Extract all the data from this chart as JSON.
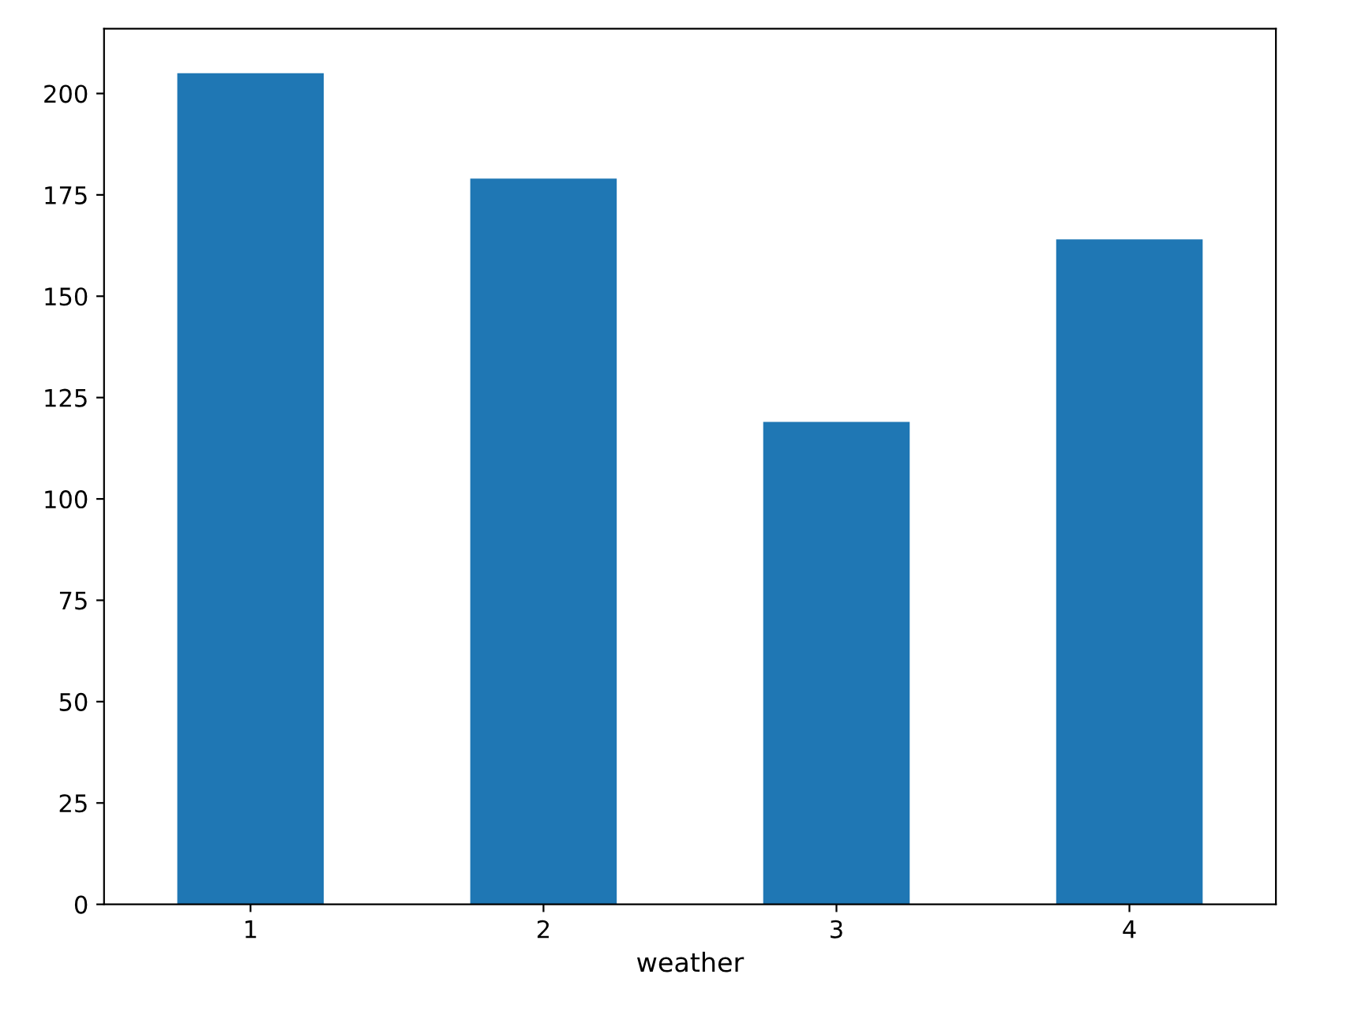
{
  "chart_data": {
    "type": "bar",
    "xlabel": "weather",
    "categories": [
      "1",
      "2",
      "3",
      "4"
    ],
    "values": [
      205,
      179,
      119,
      164
    ],
    "color": "#1f77b4",
    "ylim": [
      0,
      216
    ],
    "yticks": [
      0,
      25,
      50,
      75,
      100,
      125,
      150,
      175,
      200
    ],
    "grid": false
  }
}
